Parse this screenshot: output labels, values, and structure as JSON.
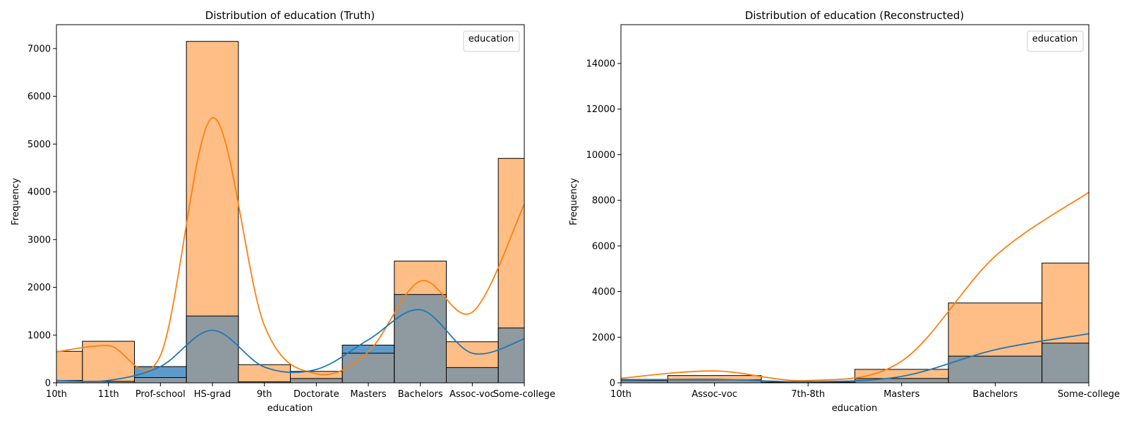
{
  "colors": {
    "series_a_fill": "#ffbe86",
    "series_a_line": "#ff7f0e",
    "series_b_fill": "#5f9bc9",
    "series_b_line": "#1f77b4",
    "overlap_fill": "#8e9aa0",
    "axes": "#000000"
  },
  "chart_data": [
    {
      "type": "bar",
      "title": "Distribution of education (Truth)",
      "xlabel": "education",
      "ylabel": "Frequency",
      "legend": {
        "title": "education",
        "position": "top-right"
      },
      "ylim": [
        0,
        7500
      ],
      "yticks": [
        0,
        1000,
        2000,
        3000,
        4000,
        5000,
        6000,
        7000
      ],
      "categories": [
        "10th",
        "11th",
        "Prof-school",
        "HS-grad",
        "9th",
        "Doctorate",
        "Masters",
        "Bachelors",
        "Assoc-voc",
        "Some-college"
      ],
      "bin_count": 9,
      "series": [
        {
          "values": [
            660,
            870,
            110,
            7150,
            380,
            240,
            620,
            2550,
            860,
            4700
          ],
          "kde": [
            650,
            780,
            570,
            5550,
            1200,
            190,
            650,
            2130,
            1480,
            3740
          ]
        },
        {
          "values": [
            50,
            30,
            340,
            1400,
            20,
            90,
            790,
            1850,
            320,
            1150
          ],
          "kde": [
            50,
            50,
            340,
            1100,
            330,
            280,
            900,
            1530,
            620,
            920
          ]
        }
      ]
    },
    {
      "type": "bar",
      "title": "Distribution of education (Reconstructed)",
      "xlabel": "education",
      "ylabel": "Frequency",
      "legend": {
        "title": "education",
        "position": "top-right"
      },
      "ylim": [
        0,
        15700
      ],
      "yticks": [
        0,
        2000,
        4000,
        6000,
        8000,
        10000,
        12000,
        14000
      ],
      "categories": [
        "10th",
        "Assoc-voc",
        "7th-8th",
        "Masters",
        "Bachelors",
        "Some-college"
      ],
      "bin_count": 5,
      "series": [
        {
          "values": [
            150,
            320,
            30,
            590,
            3500,
            5250
          ],
          "kde": [
            200,
            520,
            100,
            950,
            5550,
            8350
          ]
        },
        {
          "values": [
            100,
            130,
            20,
            190,
            1170,
            1740
          ],
          "kde": [
            120,
            150,
            50,
            280,
            1450,
            2150
          ]
        }
      ]
    }
  ]
}
